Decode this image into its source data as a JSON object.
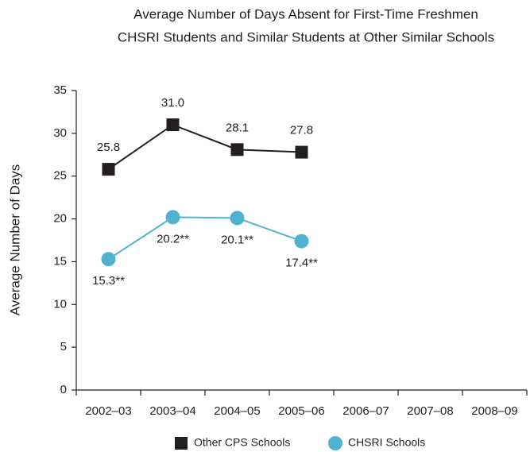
{
  "chart_data": {
    "type": "line",
    "title": [
      "Average Number of Days Absent for First-Time Freshmen",
      "CHSRI Students and Similar Students at Other Similar Schools"
    ],
    "y_label": "Average Number of Days",
    "categories": [
      "2002–03",
      "2003–04",
      "2004–05",
      "2005–06",
      "2006–07",
      "2007–08",
      "2008–09"
    ],
    "series": [
      {
        "name": "Other CPS Schools",
        "color": "#231f20",
        "marker": "square",
        "values": [
          25.8,
          31.0,
          28.1,
          27.8,
          null,
          null,
          null
        ],
        "value_labels": [
          "25.8",
          "31.0",
          "28.1",
          "27.8",
          null,
          null,
          null
        ]
      },
      {
        "name": "CHSRI Schools",
        "color": "#4fb3cf",
        "marker": "circle",
        "values": [
          15.3,
          20.2,
          20.1,
          17.4,
          null,
          null,
          null
        ],
        "value_labels": [
          "15.3**",
          "20.2**",
          "20.1**",
          "17.4**",
          null,
          null,
          null
        ]
      }
    ],
    "ylim": [
      0,
      35
    ],
    "yticks": [
      0,
      5,
      10,
      15,
      20,
      25,
      30,
      35
    ],
    "grid": false,
    "legend": "bottom"
  }
}
